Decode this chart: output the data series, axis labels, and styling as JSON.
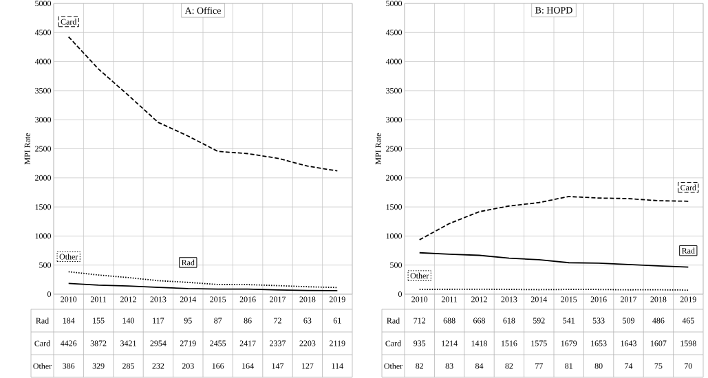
{
  "chart_data": [
    {
      "type": "line",
      "title": "A: Office",
      "ylabel": "MPI Rate",
      "categories": [
        "2010",
        "2011",
        "2012",
        "2013",
        "2014",
        "2015",
        "2016",
        "2017",
        "2018",
        "2019"
      ],
      "series": [
        {
          "name": "Rad",
          "color": "#000000",
          "line_style": "solid",
          "values": [
            184,
            155,
            140,
            117,
            95,
            87,
            86,
            72,
            63,
            61
          ]
        },
        {
          "name": "Card",
          "color": "#000000",
          "line_style": "dashed",
          "values": [
            4426,
            3872,
            3421,
            2954,
            2719,
            2455,
            2417,
            2337,
            2203,
            2119
          ]
        },
        {
          "name": "Other",
          "color": "#000000",
          "line_style": "dotted",
          "values": [
            386,
            329,
            285,
            232,
            203,
            166,
            164,
            147,
            127,
            114
          ]
        }
      ],
      "annotations": [
        "Rad",
        "Card",
        "Other"
      ],
      "ylim": [
        0,
        5000
      ],
      "yticks": [
        0,
        500,
        1000,
        1500,
        2000,
        2500,
        3000,
        3500,
        4000,
        4500,
        5000
      ],
      "grid": true,
      "data_labels": true
    },
    {
      "type": "line",
      "title": "B: HOPD",
      "ylabel": "MPI Rate",
      "categories": [
        "2010",
        "2011",
        "2012",
        "2013",
        "2014",
        "2015",
        "2016",
        "2017",
        "2018",
        "2019"
      ],
      "series": [
        {
          "name": "Rad",
          "color": "#000000",
          "line_style": "solid",
          "values": [
            712,
            688,
            668,
            618,
            592,
            541,
            533,
            509,
            486,
            465
          ]
        },
        {
          "name": "Card",
          "color": "#000000",
          "line_style": "dashed",
          "values": [
            935,
            1214,
            1418,
            1516,
            1575,
            1679,
            1653,
            1643,
            1607,
            1598
          ]
        },
        {
          "name": "Other",
          "color": "#000000",
          "line_style": "dotted",
          "values": [
            82,
            83,
            84,
            82,
            77,
            81,
            80,
            74,
            75,
            70
          ]
        }
      ],
      "annotations": [
        "Rad",
        "Card",
        "Other"
      ],
      "ylim": [
        0,
        5000
      ],
      "yticks": [
        0,
        500,
        1000,
        1500,
        2000,
        2500,
        3000,
        3500,
        4000,
        4500,
        5000
      ],
      "grid": true,
      "data_labels": true
    }
  ]
}
